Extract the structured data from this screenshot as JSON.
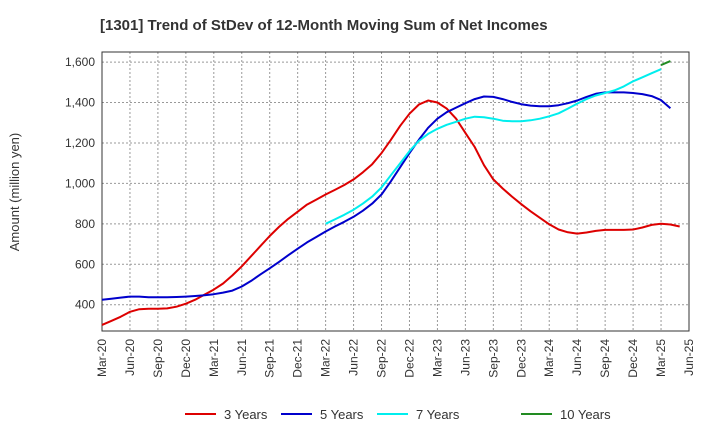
{
  "chart_data": {
    "type": "line",
    "title": "[1301]  Trend of StDev of 12-Month Moving Sum of Net Incomes",
    "ylabel": "Amount (million yen)",
    "xlabel": "",
    "ylim": [
      270,
      1650
    ],
    "y_ticks": [
      "400",
      "600",
      "800",
      "1,000",
      "1,200",
      "1,400",
      "1,600"
    ],
    "y_tick_values": [
      400,
      600,
      800,
      1000,
      1200,
      1400,
      1600
    ],
    "x_tick_labels": [
      "Mar-20",
      "Jun-20",
      "Sep-20",
      "Dec-20",
      "Mar-21",
      "Jun-21",
      "Sep-21",
      "Dec-21",
      "Mar-22",
      "Jun-22",
      "Sep-22",
      "Dec-22",
      "Mar-23",
      "Jun-23",
      "Sep-23",
      "Dec-23",
      "Mar-24",
      "Jun-24",
      "Sep-24",
      "Dec-24",
      "Mar-25",
      "Jun-25"
    ],
    "grid": true,
    "legend_position": "bottom",
    "series": [
      {
        "name": "3 Years",
        "color": "#dd0000",
        "start_index": 0,
        "values": [
          300,
          320,
          340,
          365,
          378,
          380,
          380,
          382,
          390,
          405,
          425,
          450,
          475,
          505,
          545,
          590,
          640,
          690,
          740,
          785,
          825,
          860,
          895,
          920,
          945,
          968,
          992,
          1020,
          1055,
          1095,
          1150,
          1215,
          1285,
          1345,
          1390,
          1410,
          1400,
          1370,
          1320,
          1250,
          1180,
          1090,
          1020,
          975,
          935,
          897,
          862,
          830,
          798,
          772,
          758,
          752,
          757,
          765,
          770,
          770,
          770,
          772,
          782,
          795,
          800,
          797,
          787
        ]
      },
      {
        "name": "5 Years",
        "color": "#0000cc",
        "start_index": 0,
        "values": [
          425,
          430,
          435,
          440,
          440,
          437,
          437,
          437,
          438,
          440,
          443,
          447,
          452,
          460,
          470,
          490,
          518,
          550,
          580,
          612,
          645,
          677,
          708,
          735,
          762,
          787,
          810,
          835,
          865,
          900,
          945,
          1010,
          1080,
          1150,
          1215,
          1275,
          1320,
          1352,
          1375,
          1397,
          1417,
          1430,
          1428,
          1417,
          1403,
          1392,
          1385,
          1382,
          1382,
          1387,
          1397,
          1410,
          1428,
          1443,
          1450,
          1450,
          1450,
          1447,
          1442,
          1432,
          1412,
          1372
        ]
      },
      {
        "name": "7 Years",
        "color": "#00eeee",
        "start_index": 24,
        "values": [
          800,
          822,
          845,
          870,
          900,
          935,
          980,
          1040,
          1100,
          1160,
          1210,
          1245,
          1270,
          1290,
          1305,
          1320,
          1330,
          1327,
          1320,
          1310,
          1307,
          1307,
          1312,
          1320,
          1332,
          1347,
          1370,
          1395,
          1417,
          1435,
          1447,
          1460,
          1480,
          1505,
          1525,
          1545,
          1565
        ]
      },
      {
        "name": "10 Years",
        "color": "#228b22",
        "start_index": 60,
        "values": [
          1585,
          1605
        ]
      }
    ]
  }
}
